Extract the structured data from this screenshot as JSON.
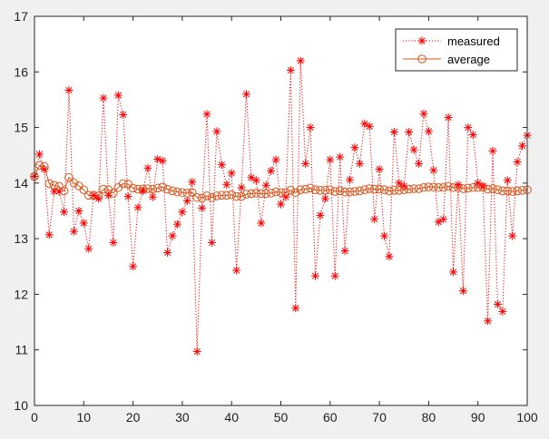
{
  "chart_data": {
    "type": "line",
    "title": "",
    "xlabel": "",
    "ylabel": "",
    "xlim": [
      0,
      100
    ],
    "ylim": [
      10,
      17
    ],
    "xticks": [
      0,
      10,
      20,
      30,
      40,
      50,
      60,
      70,
      80,
      90,
      100
    ],
    "yticks": [
      10,
      11,
      12,
      13,
      14,
      15,
      16,
      17
    ],
    "xtick_labels": [
      "0",
      "10",
      "20",
      "30",
      "40",
      "50",
      "60",
      "70",
      "80",
      "90",
      "100"
    ],
    "ytick_labels": [
      "10",
      "11",
      "12",
      "13",
      "14",
      "15",
      "16",
      "17"
    ],
    "grid": false,
    "legend_position": "top-right",
    "x": [
      0,
      1,
      2,
      3,
      4,
      5,
      6,
      7,
      8,
      9,
      10,
      11,
      12,
      13,
      14,
      15,
      16,
      17,
      18,
      19,
      20,
      21,
      22,
      23,
      24,
      25,
      26,
      27,
      28,
      29,
      30,
      31,
      32,
      33,
      34,
      35,
      36,
      37,
      38,
      39,
      40,
      41,
      42,
      43,
      44,
      45,
      46,
      47,
      48,
      49,
      50,
      51,
      52,
      53,
      54,
      55,
      56,
      57,
      58,
      59,
      60,
      61,
      62,
      63,
      64,
      65,
      66,
      67,
      68,
      69,
      70,
      71,
      72,
      73,
      74,
      75,
      76,
      77,
      78,
      79,
      80,
      81,
      82,
      83,
      84,
      85,
      86,
      87,
      88,
      89,
      90,
      91,
      92,
      93,
      94,
      95,
      96,
      97,
      98,
      99,
      100
    ],
    "series": [
      {
        "name": "measured",
        "style": "dotted-star",
        "color": "#ff0000",
        "values": [
          14.12,
          14.52,
          14.25,
          13.07,
          13.85,
          13.85,
          13.48,
          15.67,
          13.13,
          13.5,
          13.28,
          12.82,
          13.78,
          13.72,
          15.53,
          13.78,
          12.93,
          15.58,
          15.23,
          13.76,
          12.5,
          13.56,
          13.86,
          14.27,
          13.75,
          14.43,
          14.4,
          12.75,
          13.05,
          13.26,
          13.48,
          13.68,
          14.02,
          10.97,
          13.55,
          15.24,
          12.93,
          14.93,
          14.33,
          13.97,
          14.18,
          12.43,
          13.92,
          15.6,
          14.1,
          14.05,
          13.28,
          13.96,
          14.22,
          14.42,
          13.62,
          13.75,
          16.03,
          11.75,
          16.2,
          14.35,
          15.0,
          12.33,
          13.42,
          13.72,
          14.42,
          12.33,
          14.47,
          12.78,
          14.06,
          14.64,
          14.35,
          15.07,
          15.02,
          13.35,
          14.25,
          13.05,
          12.68,
          14.92,
          14.0,
          13.95,
          14.92,
          14.6,
          14.35,
          15.25,
          14.93,
          14.23,
          13.3,
          13.35,
          15.18,
          12.4,
          13.97,
          12.06,
          15.0,
          14.87,
          14.0,
          13.95,
          11.52,
          14.58,
          11.82,
          11.69,
          14.05,
          13.05,
          14.38,
          14.67,
          14.86
        ]
      },
      {
        "name": "average",
        "style": "solid-circle",
        "color": "#d95319",
        "values": [
          14.12,
          14.32,
          14.3,
          13.99,
          13.96,
          13.94,
          13.86,
          14.1,
          14.0,
          13.95,
          13.88,
          13.78,
          13.78,
          13.77,
          13.89,
          13.88,
          13.82,
          13.92,
          13.99,
          13.98,
          13.91,
          13.89,
          13.89,
          13.9,
          13.89,
          13.91,
          13.93,
          13.89,
          13.86,
          13.84,
          13.83,
          13.82,
          13.83,
          13.74,
          13.73,
          13.77,
          13.74,
          13.77,
          13.78,
          13.78,
          13.79,
          13.76,
          13.76,
          13.8,
          13.81,
          13.82,
          13.81,
          13.81,
          13.82,
          13.84,
          13.83,
          13.83,
          13.87,
          13.83,
          13.88,
          13.89,
          13.91,
          13.88,
          13.87,
          13.87,
          13.88,
          13.85,
          13.86,
          13.84,
          13.84,
          13.85,
          13.86,
          13.88,
          13.9,
          13.89,
          13.89,
          13.88,
          13.86,
          13.87,
          13.87,
          13.88,
          13.89,
          13.9,
          13.9,
          13.92,
          13.93,
          13.93,
          13.92,
          13.92,
          13.94,
          13.92,
          13.92,
          13.9,
          13.91,
          13.92,
          13.92,
          13.92,
          13.89,
          13.9,
          13.88,
          13.86,
          13.86,
          13.85,
          13.86,
          13.87,
          13.88
        ]
      }
    ]
  }
}
